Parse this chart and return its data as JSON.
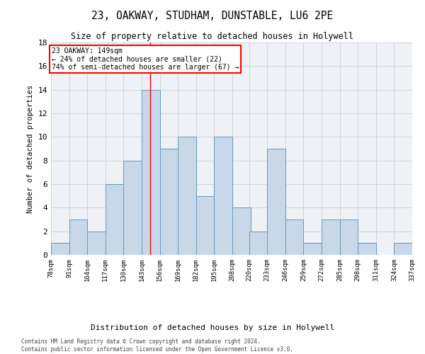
{
  "title_line1": "23, OAKWAY, STUDHAM, DUNSTABLE, LU6 2PE",
  "title_line2": "Size of property relative to detached houses in Holywell",
  "xlabel": "Distribution of detached houses by size in Holywell",
  "ylabel": "Number of detached properties",
  "bar_color": "#c8d8e8",
  "bar_edge_color": "#6699bb",
  "bins": [
    78,
    91,
    104,
    117,
    130,
    143,
    156,
    169,
    182,
    195,
    208,
    220,
    233,
    246,
    259,
    272,
    285,
    298,
    311,
    324,
    337
  ],
  "counts": [
    1,
    3,
    2,
    6,
    8,
    14,
    9,
    10,
    5,
    10,
    4,
    2,
    9,
    3,
    1,
    3,
    3,
    1,
    0,
    1
  ],
  "bin_labels": [
    "78sqm",
    "91sqm",
    "104sqm",
    "117sqm",
    "130sqm",
    "143sqm",
    "156sqm",
    "169sqm",
    "182sqm",
    "195sqm",
    "208sqm",
    "220sqm",
    "233sqm",
    "246sqm",
    "259sqm",
    "272sqm",
    "285sqm",
    "298sqm",
    "311sqm",
    "324sqm",
    "337sqm"
  ],
  "ylim": [
    0,
    18
  ],
  "yticks": [
    0,
    2,
    4,
    6,
    8,
    10,
    12,
    14,
    16,
    18
  ],
  "vline_x": 149,
  "annotation_line1": "23 OAKWAY: 149sqm",
  "annotation_line2": "← 24% of detached houses are smaller (22)",
  "annotation_line3": "74% of semi-detached houses are larger (67) →",
  "annotation_box_color": "white",
  "annotation_box_edge_color": "red",
  "background_color": "#eef2f7",
  "grid_color": "#c8c8c8",
  "footer_line1": "Contains HM Land Registry data © Crown copyright and database right 2024.",
  "footer_line2": "Contains public sector information licensed under the Open Government Licence v3.0."
}
